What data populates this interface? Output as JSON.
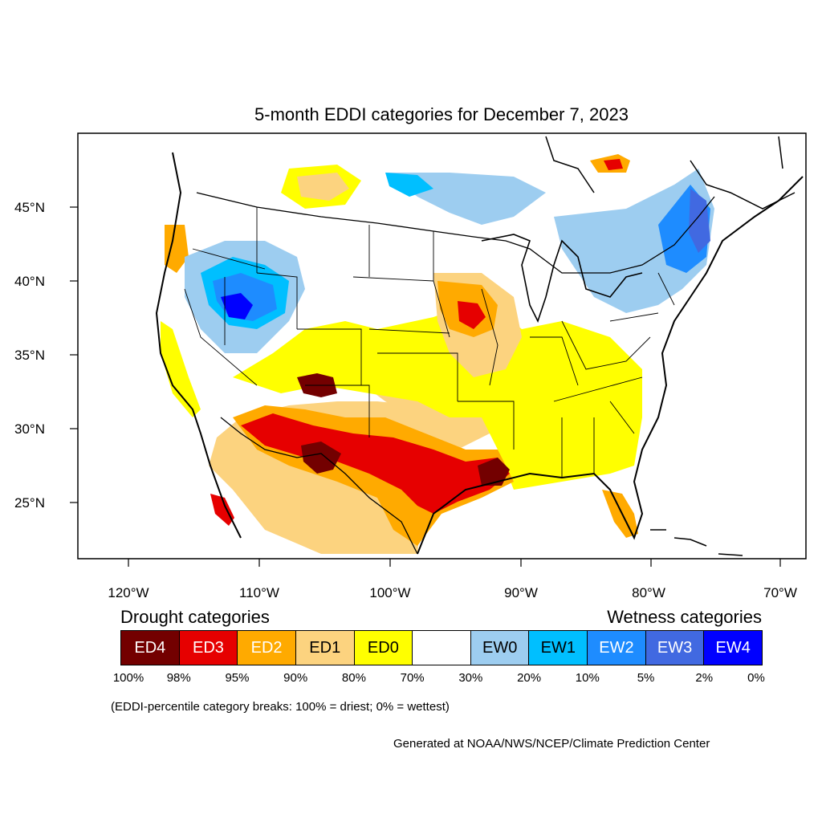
{
  "title": "5-month EDDI categories for December 7, 2023",
  "lat_labels": [
    "45°N",
    "40°N",
    "35°N",
    "30°N",
    "25°N"
  ],
  "lon_labels": [
    "120°W",
    "110°W",
    "100°W",
    "90°W",
    "80°W",
    "70°W"
  ],
  "legend": {
    "drought_heading": "Drought categories",
    "wetness_heading": "Wetness categories",
    "categories": [
      {
        "label": "ED4",
        "color": "#730000",
        "text_color": "#ffffff"
      },
      {
        "label": "ED3",
        "color": "#e60000",
        "text_color": "#ffffff"
      },
      {
        "label": "ED2",
        "color": "#ffaa00",
        "text_color": "#ffffff"
      },
      {
        "label": "ED1",
        "color": "#fcd37f",
        "text_color": "#000000"
      },
      {
        "label": "ED0",
        "color": "#ffff00",
        "text_color": "#000000"
      },
      {
        "label": "",
        "color": "#ffffff",
        "text_color": "#000000"
      },
      {
        "label": "EW0",
        "color": "#9dcdf0",
        "text_color": "#000000"
      },
      {
        "label": "EW1",
        "color": "#00bfff",
        "text_color": "#000000"
      },
      {
        "label": "EW2",
        "color": "#1e8cff",
        "text_color": "#ffffff"
      },
      {
        "label": "EW3",
        "color": "#4169e1",
        "text_color": "#ffffff"
      },
      {
        "label": "EW4",
        "color": "#0000ff",
        "text_color": "#ffffff"
      }
    ],
    "breaks": [
      "100%",
      "98%",
      "95%",
      "90%",
      "80%",
      "70%",
      "30%",
      "20%",
      "10%",
      "5%",
      "2%",
      "0%"
    ]
  },
  "note": "(EDDI-percentile category breaks: 100% = driest; 0% = wettest)",
  "credit": "Generated at NOAA/NWS/NCEP/Climate Prediction Center"
}
